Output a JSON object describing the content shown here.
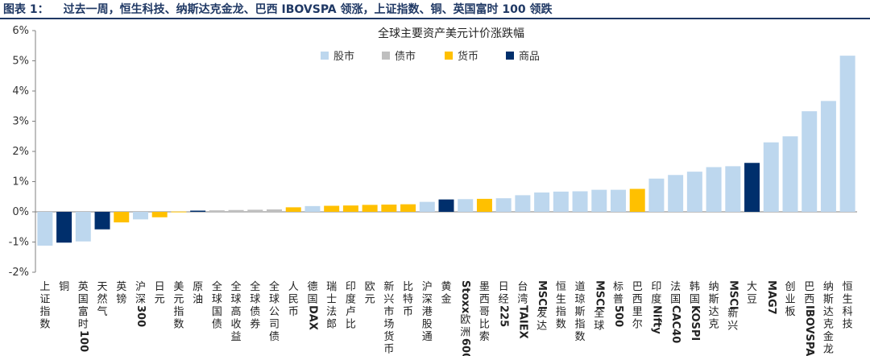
{
  "caption": {
    "label": "图表 1：",
    "text": "过去一周，恒生科技、纳斯达克金龙、巴西 IBOVSPA 领涨，上证指数、铜、英国富时 100 领跌"
  },
  "colors": {
    "股市": "#bdd7ee",
    "债市": "#bfbfbf",
    "货币": "#ffc000",
    "商品": "#002f6c"
  },
  "chart_data": {
    "type": "bar",
    "title": "全球主要资产美元计价涨跌幅",
    "ylim": [
      -2,
      6
    ],
    "yticks": [
      -2,
      -1,
      0,
      1,
      2,
      3,
      4,
      5,
      6
    ],
    "ytick_labels": [
      "-2%",
      "-1%",
      "0%",
      "1%",
      "2%",
      "3%",
      "4%",
      "5%",
      "6%"
    ],
    "legend": [
      "股市",
      "债市",
      "货币",
      "商品"
    ],
    "legend_position": "top",
    "categories": [
      "上证指数",
      "铜",
      "英国富时100",
      "天然气",
      "英镑",
      "沪深300",
      "日元",
      "美元指数",
      "原油",
      "全球国债",
      "全球高收益",
      "全球债券",
      "全球公司债",
      "人民币",
      "德国DAX",
      "瑞士法郎",
      "印度卢比",
      "欧元",
      "新兴市场货币",
      "比特币",
      "沪深港股通",
      "黄金",
      "Stoxx欧洲600",
      "墨西哥比索",
      "日经225",
      "台湾TAIEX",
      "MSCI发达",
      "恒生指数",
      "道琼斯指数",
      "MSCI全球",
      "标普500",
      "巴西里尔",
      "印度Nifty",
      "法国CAC40",
      "韩国KOSPI",
      "纳斯达克",
      "MSCI新兴",
      "大豆",
      "MAG7",
      "创业板",
      "巴西IBOVSPA",
      "纳斯达克金龙",
      "恒生科技"
    ],
    "groups": [
      "股市",
      "商品",
      "股市",
      "商品",
      "货币",
      "股市",
      "货币",
      "货币",
      "商品",
      "债市",
      "债市",
      "债市",
      "债市",
      "货币",
      "股市",
      "货币",
      "货币",
      "货币",
      "货币",
      "货币",
      "股市",
      "商品",
      "股市",
      "货币",
      "股市",
      "股市",
      "股市",
      "股市",
      "股市",
      "股市",
      "股市",
      "货币",
      "股市",
      "股市",
      "股市",
      "股市",
      "股市",
      "商品",
      "股市",
      "股市",
      "股市",
      "股市",
      "股市"
    ],
    "values": [
      -1.12,
      -1.02,
      -0.98,
      -0.58,
      -0.35,
      -0.25,
      -0.18,
      0.01,
      0.04,
      0.05,
      0.06,
      0.07,
      0.08,
      0.15,
      0.19,
      0.2,
      0.21,
      0.23,
      0.24,
      0.25,
      0.33,
      0.41,
      0.42,
      0.43,
      0.45,
      0.55,
      0.64,
      0.67,
      0.68,
      0.73,
      0.73,
      0.76,
      1.1,
      1.22,
      1.33,
      1.48,
      1.51,
      1.62,
      2.3,
      2.5,
      3.33,
      3.67,
      5.17
    ]
  }
}
